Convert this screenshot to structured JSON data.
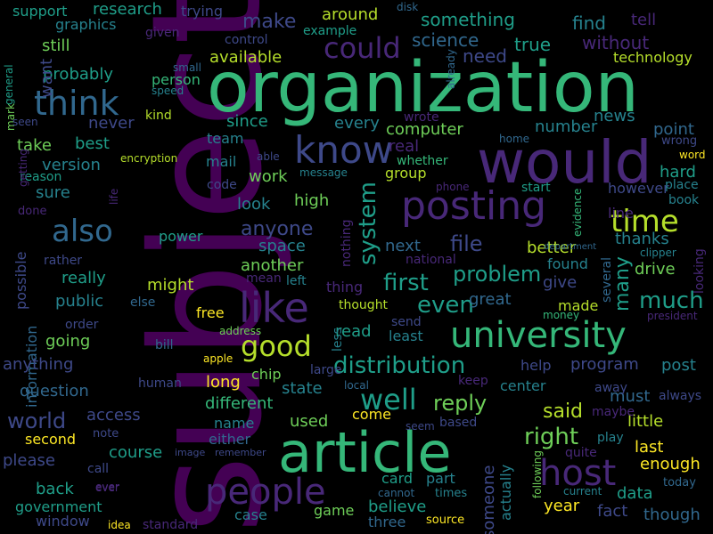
{
  "palette": {
    "background": "#000000",
    "dark_purple": "#440154",
    "purple": "#482878",
    "indigo": "#3e4989",
    "blue": "#31688e",
    "teal": "#26828e",
    "green_teal": "#1f9e89",
    "green": "#35b779",
    "light_green": "#6ece58",
    "yellow_green": "#b5de2b",
    "yellow": "#fde725"
  },
  "words": [
    "subject",
    "organization",
    "would",
    "article",
    "posting",
    "university",
    "people",
    "like",
    "know",
    "think",
    "host",
    "time",
    "also",
    "good",
    "could",
    "well",
    "distribution",
    "first",
    "even",
    "much",
    "right",
    "many",
    "reply",
    "file",
    "system",
    "problem",
    "world",
    "make",
    "said",
    "anyone",
    "need",
    "something",
    "science",
    "true",
    "find",
    "without",
    "tell",
    "research",
    "support",
    "around",
    "computer",
    "available",
    "technology",
    "number",
    "news",
    "point",
    "since",
    "every",
    "team",
    "version",
    "take",
    "best",
    "probably",
    "still",
    "want",
    "never",
    "really",
    "public",
    "might",
    "power",
    "space",
    "another",
    "look",
    "high",
    "work",
    "group",
    "whether",
    "mail",
    "code",
    "sure",
    "going",
    "information",
    "anything",
    "question",
    "access",
    "second",
    "please",
    "back",
    "government",
    "window",
    "course",
    "different",
    "long",
    "name",
    "either",
    "used",
    "come",
    "state",
    "case",
    "game",
    "believe",
    "card",
    "part",
    "year",
    "fact",
    "though",
    "data",
    "enough",
    "last",
    "little",
    "post",
    "program",
    "help",
    "center",
    "must",
    "always",
    "drive",
    "better",
    "thanks",
    "give",
    "made",
    "great",
    "least",
    "read",
    "real",
    "next",
    "thing",
    "someone",
    "actually",
    "however",
    "hard",
    "place",
    "book",
    "start",
    "line",
    "evidence",
    "several",
    "looking",
    "clipper",
    "department",
    "national",
    "nothing",
    "rather",
    "possible",
    "life",
    "done",
    "reason",
    "getting",
    "mark",
    "general",
    "seen",
    "graphics",
    "given",
    "control",
    "example",
    "disk",
    "trying",
    "small",
    "speed",
    "person",
    "kind",
    "encryption",
    "able",
    "message",
    "phone",
    "home",
    "wrong",
    "word",
    "free",
    "else",
    "order",
    "bill",
    "address",
    "apple",
    "human",
    "chip",
    "large",
    "less",
    "local",
    "keep",
    "away",
    "maybe",
    "seem",
    "based",
    "note",
    "image",
    "remember",
    "call",
    "ever",
    "standard",
    "idea",
    "cannot",
    "three",
    "times",
    "source",
    "following",
    "current",
    "today",
    "president",
    "money",
    "send",
    "thought",
    "left",
    "mean",
    "quite",
    "play",
    "already",
    "ever",
    "wrote",
    "found"
  ]
}
